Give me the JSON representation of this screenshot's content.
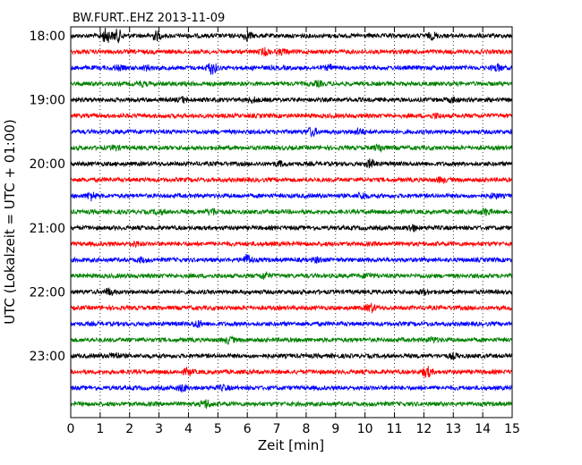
{
  "chart_data": {
    "type": "line",
    "title": "BW.FURT..EHZ 2013-11-09",
    "xlabel": "Zeit  [min]",
    "ylabel": "UTC (Lokalzeit = UTC + 01:00)",
    "xlim": [
      0,
      15
    ],
    "xticks": [
      "0",
      "1",
      "2",
      "3",
      "4",
      "5",
      "6",
      "7",
      "8",
      "9",
      "10",
      "11",
      "12",
      "13",
      "14",
      "15"
    ],
    "yticks": [
      {
        "label": "18:00",
        "trace": 0
      },
      {
        "label": "19:00",
        "trace": 4
      },
      {
        "label": "20:00",
        "trace": 8
      },
      {
        "label": "21:00",
        "trace": 12
      },
      {
        "label": "22:00",
        "trace": 16
      },
      {
        "label": "23:00",
        "trace": 20
      }
    ],
    "grid": "x-dotted",
    "trace_colors": [
      "#000000",
      "#ff0000",
      "#0000ff",
      "#008000"
    ],
    "traces": [
      {
        "start": "18:00",
        "bursts": [
          [
            1.2,
            7
          ],
          [
            1.6,
            6
          ],
          [
            2.9,
            4
          ],
          [
            6.0,
            4
          ],
          [
            12.3,
            3
          ]
        ]
      },
      {
        "start": "18:15",
        "bursts": [
          [
            6.6,
            3
          ],
          [
            7.2,
            2
          ]
        ]
      },
      {
        "start": "18:30",
        "bursts": [
          [
            4.8,
            6
          ],
          [
            1.6,
            2
          ],
          [
            2.6,
            2
          ],
          [
            8.8,
            2
          ],
          [
            14.5,
            3
          ]
        ]
      },
      {
        "start": "18:45",
        "bursts": [
          [
            2.4,
            2
          ],
          [
            8.4,
            2
          ]
        ]
      },
      {
        "start": "19:00",
        "bursts": [
          [
            3.8,
            2
          ],
          [
            6.2,
            2
          ],
          [
            13.0,
            2
          ]
        ]
      },
      {
        "start": "19:15",
        "bursts": [
          [
            12.4,
            2
          ]
        ]
      },
      {
        "start": "19:30",
        "bursts": [
          [
            8.2,
            4
          ],
          [
            9.8,
            3
          ]
        ]
      },
      {
        "start": "19:45",
        "bursts": [
          [
            1.5,
            2
          ],
          [
            10.5,
            3
          ]
        ]
      },
      {
        "start": "20:00",
        "bursts": [
          [
            7.1,
            2
          ],
          [
            10.2,
            4
          ]
        ]
      },
      {
        "start": "20:15",
        "bursts": [
          [
            12.6,
            2
          ]
        ]
      },
      {
        "start": "20:30",
        "bursts": [
          [
            0.7,
            4
          ],
          [
            9.9,
            3
          ],
          [
            14.4,
            2
          ]
        ]
      },
      {
        "start": "20:45",
        "bursts": [
          [
            3.0,
            2
          ],
          [
            4.8,
            3
          ],
          [
            14.1,
            3
          ]
        ]
      },
      {
        "start": "21:00",
        "bursts": [
          [
            11.6,
            3
          ]
        ]
      },
      {
        "start": "21:15",
        "bursts": [
          [
            2.2,
            2
          ]
        ]
      },
      {
        "start": "21:30",
        "bursts": [
          [
            6.0,
            5
          ],
          [
            2.4,
            2
          ],
          [
            8.4,
            2
          ]
        ]
      },
      {
        "start": "21:45",
        "bursts": [
          [
            6.6,
            3
          ],
          [
            10.1,
            2
          ]
        ]
      },
      {
        "start": "22:00",
        "bursts": [
          [
            1.3,
            3
          ],
          [
            12.0,
            2
          ]
        ]
      },
      {
        "start": "22:15",
        "bursts": [
          [
            10.2,
            4
          ]
        ]
      },
      {
        "start": "22:30",
        "bursts": [
          [
            4.3,
            3
          ]
        ]
      },
      {
        "start": "22:45",
        "bursts": [
          [
            5.4,
            3
          ],
          [
            12.3,
            2
          ]
        ]
      },
      {
        "start": "23:00",
        "bursts": [
          [
            1.5,
            3
          ],
          [
            13.0,
            2
          ]
        ]
      },
      {
        "start": "23:15",
        "bursts": [
          [
            4.0,
            3
          ],
          [
            12.1,
            5
          ]
        ]
      },
      {
        "start": "23:30",
        "bursts": [
          [
            3.8,
            3
          ],
          [
            5.2,
            2
          ]
        ]
      },
      {
        "start": "23:45",
        "bursts": [
          [
            4.6,
            4
          ]
        ]
      }
    ]
  }
}
